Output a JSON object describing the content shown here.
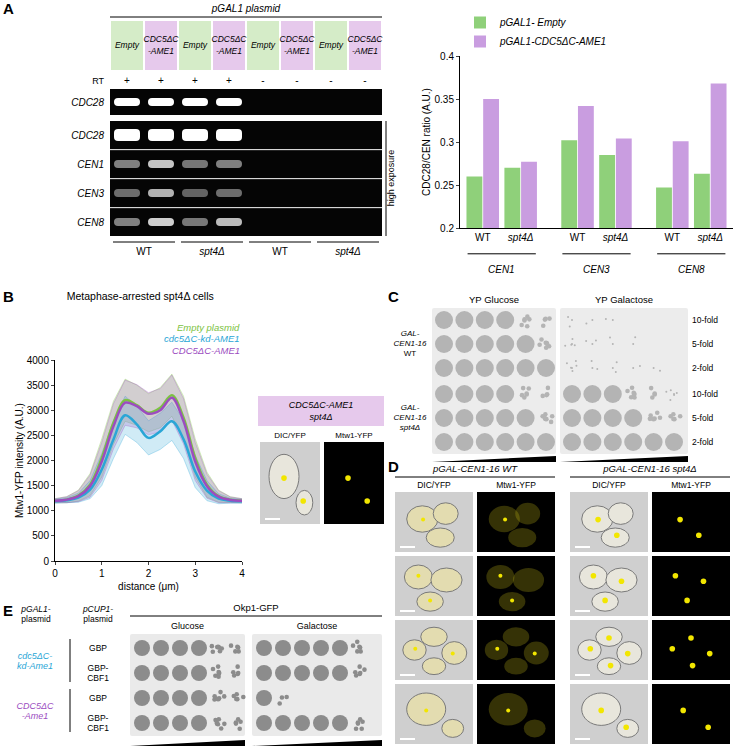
{
  "panel_labels": [
    "A",
    "B",
    "C",
    "D",
    "E"
  ],
  "gel": {
    "header": "pGAL1 plasmid",
    "lanes": [
      {
        "lines": [
          "Empty"
        ],
        "color": "#d5ecc8"
      },
      {
        "lines": [
          "CDC5ΔC",
          "-AME1"
        ],
        "color": "#e6c9ec"
      },
      {
        "lines": [
          "Empty"
        ],
        "color": "#d5ecc8"
      },
      {
        "lines": [
          "CDC5ΔC",
          "-AME1"
        ],
        "color": "#e6c9ec"
      },
      {
        "lines": [
          "Empty"
        ],
        "color": "#d5ecc8"
      },
      {
        "lines": [
          "CDC5ΔC",
          "-AME1"
        ],
        "color": "#e6c9ec"
      },
      {
        "lines": [
          "Empty"
        ],
        "color": "#d5ecc8"
      },
      {
        "lines": [
          "CDC5ΔC",
          "-AME1"
        ],
        "color": "#e6c9ec"
      }
    ],
    "rt_label": "RT",
    "rt": [
      "+",
      "+",
      "+",
      "+",
      "-",
      "-",
      "-",
      "-"
    ],
    "rows": [
      "CDC28",
      "CDC28",
      "CEN1",
      "CEN3",
      "CEN8"
    ],
    "exposure_label": "high exposure",
    "strains": [
      "WT",
      "spt4Δ",
      "WT",
      "spt4Δ"
    ]
  },
  "chart_data": [
    {
      "type": "bar",
      "y_label": "CDC28/CEN ratio (A.U.)",
      "groups": [
        "CEN1",
        "CEN3",
        "CEN8"
      ],
      "categories": [
        "WT",
        "spt4Δ",
        "WT",
        "spt4Δ",
        "WT",
        "spt4Δ"
      ],
      "series": [
        {
          "name": "pGAL1- Empty",
          "color": "#8fd07a",
          "values": [
            0.26,
            0.27,
            0.302,
            0.285,
            0.247,
            0.263
          ]
        },
        {
          "name": "pGAL1-CDC5ΔC-AME1",
          "color": "#c99de0",
          "values": [
            0.35,
            0.277,
            0.342,
            0.304,
            0.301,
            0.368
          ]
        }
      ],
      "ylim": [
        0.2,
        0.4
      ],
      "yticks": [
        0.2,
        0.25,
        0.3,
        0.35,
        0.4
      ],
      "grid": false,
      "legend": "top"
    },
    {
      "type": "line",
      "title": "Metaphase-arrested spt4Δ cells",
      "x_label": "distance (μm)",
      "y_label": "Mtw1-YFP intensity (A.U.)",
      "x": [
        0,
        0.25,
        0.5,
        0.75,
        1,
        1.25,
        1.5,
        1.75,
        2,
        2.25,
        2.5,
        2.75,
        3,
        3.25,
        3.5,
        3.75,
        4
      ],
      "series": [
        {
          "name": "Empty plasmid",
          "color": "#7cc242",
          "values": [
            1200,
            1220,
            1300,
            1520,
            2050,
            2750,
            3200,
            3100,
            2950,
            3050,
            3300,
            2850,
            2050,
            1520,
            1290,
            1220,
            1200
          ],
          "errors": [
            40,
            60,
            110,
            220,
            380,
            430,
            420,
            400,
            380,
            400,
            420,
            430,
            380,
            250,
            120,
            60,
            40
          ]
        },
        {
          "name": "cdc5ΔC-kd-AME1",
          "color": "#2aa6d6",
          "values": [
            1190,
            1210,
            1260,
            1420,
            1820,
            2420,
            2900,
            2720,
            2450,
            2580,
            2780,
            2420,
            1780,
            1400,
            1240,
            1200,
            1190
          ],
          "errors": [
            40,
            50,
            90,
            180,
            320,
            380,
            380,
            360,
            340,
            360,
            380,
            380,
            320,
            200,
            100,
            50,
            40
          ]
        },
        {
          "name": "CDC5ΔC-AME1",
          "color": "#9c4dbf",
          "values": [
            1200,
            1220,
            1290,
            1490,
            1980,
            2680,
            3150,
            3080,
            2930,
            3000,
            3250,
            2780,
            1980,
            1490,
            1280,
            1215,
            1200
          ],
          "errors": [
            40,
            60,
            110,
            220,
            380,
            450,
            450,
            430,
            420,
            430,
            450,
            450,
            380,
            240,
            120,
            60,
            40
          ]
        }
      ],
      "xlim": [
        0,
        4
      ],
      "xticks": [
        0,
        1,
        2,
        3,
        4
      ],
      "ylim": [
        0,
        4000
      ],
      "yticks": [
        0,
        500,
        1000,
        1500,
        2000,
        2500,
        3000,
        3500,
        4000
      ],
      "grid": false,
      "legend": "top right"
    }
  ],
  "inset_B": {
    "header": [
      "CDC5ΔC-AME1",
      "spt4Δ"
    ],
    "header_color": "#e6c9ec",
    "images": [
      "DIC/YFP",
      "Mtw1-YFP"
    ]
  },
  "plates_C": {
    "media": [
      "YP Glucose",
      "YP Galactose"
    ],
    "strains": [
      [
        "GAL-",
        "CEN1-16",
        "WT"
      ],
      [
        "GAL-",
        "CEN1-16",
        "spt4Δ"
      ]
    ],
    "rows": [
      "10-fold",
      "5-fold",
      "2-fold",
      "10-fold",
      "5-fold",
      "2-fold"
    ]
  },
  "micrographs_D": {
    "strains": [
      "pGAL-CEN1-16 WT",
      "pGAL-CEN1-16 spt4Δ"
    ],
    "channels": [
      "DIC/YFP",
      "Mtw1-YFP"
    ]
  },
  "spots_E": {
    "pgal_header": [
      "pGAL1-",
      "plasmid"
    ],
    "pcup_header": [
      "pCUP1-",
      "plasmid"
    ],
    "reporter": "Okp1-GFP",
    "media": [
      "Glucose",
      "Galactose"
    ],
    "plasmids": [
      {
        "lines": [
          "cdc5ΔC-",
          "kd-Ame1"
        ],
        "color": "#2aa6d6"
      },
      {
        "lines": [
          "CDC5ΔC",
          "-Ame1"
        ],
        "color": "#9c4dbf"
      }
    ],
    "rows": [
      [
        "GBP"
      ],
      [
        "GBP-",
        "CBF1"
      ],
      [
        "GBP"
      ],
      [
        "GBP-",
        "CBF1"
      ]
    ]
  }
}
